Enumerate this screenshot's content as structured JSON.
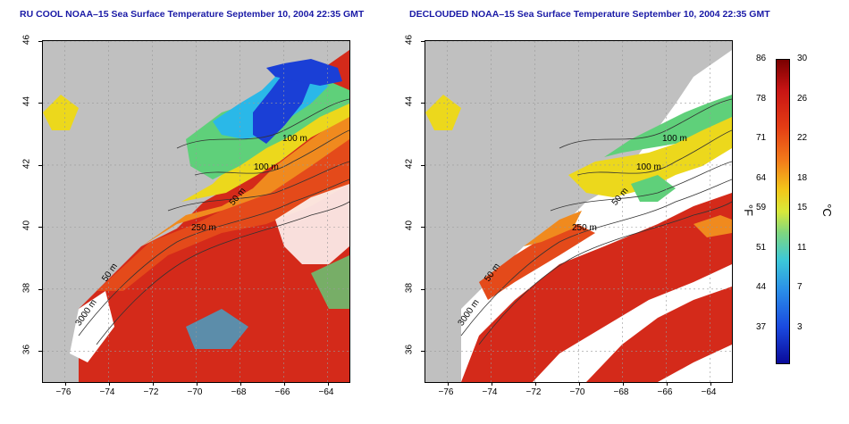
{
  "panels": [
    {
      "title": "RU COOL NOAA–15 Sea Surface Temperature September 10, 2004 22:35 GMT",
      "mode": "raw"
    },
    {
      "title": "DECLOUDED NOAA–15 Sea Surface Temperature September 10, 2004 22:35 GMT",
      "mode": "declouded"
    }
  ],
  "axes": {
    "x_ticks": [
      "−76",
      "−74",
      "−72",
      "−70",
      "−68",
      "−66",
      "−64"
    ],
    "x_values": [
      -76,
      -74,
      -72,
      -70,
      -68,
      -66,
      -64
    ],
    "y_ticks": [
      "46",
      "44",
      "42",
      "40",
      "38",
      "36"
    ],
    "y_values": [
      46,
      44,
      42,
      40,
      38,
      36
    ],
    "xlim": [
      -77,
      -63
    ],
    "ylim": [
      35,
      46
    ]
  },
  "contour_labels": [
    "100 m",
    "100 m",
    "50 m",
    "250 m",
    "50 m",
    "3000 m"
  ],
  "colorbar": {
    "fahrenheit_ticks": [
      "86",
      "78",
      "71",
      "64",
      "59",
      "51",
      "44",
      "37"
    ],
    "fahrenheit_values": [
      86,
      78,
      71,
      64,
      59,
      51,
      44,
      37
    ],
    "celsius_ticks": [
      "30",
      "26",
      "22",
      "18",
      "15",
      "11",
      "7",
      "3"
    ],
    "celsius_values": [
      30,
      26,
      22,
      18,
      15,
      11,
      7,
      3
    ],
    "range_c": [
      -0.5,
      30
    ],
    "unit_f": "°F",
    "unit_c": "°C"
  },
  "colors": {
    "land": "#c0c0c0",
    "cloud": "#ffffff",
    "warm": "#d42a1a",
    "orange": "#f08a1e",
    "yellow": "#ecd81c",
    "green": "#5fd07a",
    "cyan": "#2ab8e8",
    "blue": "#1a3fd6",
    "title": "#1a1aa6"
  }
}
